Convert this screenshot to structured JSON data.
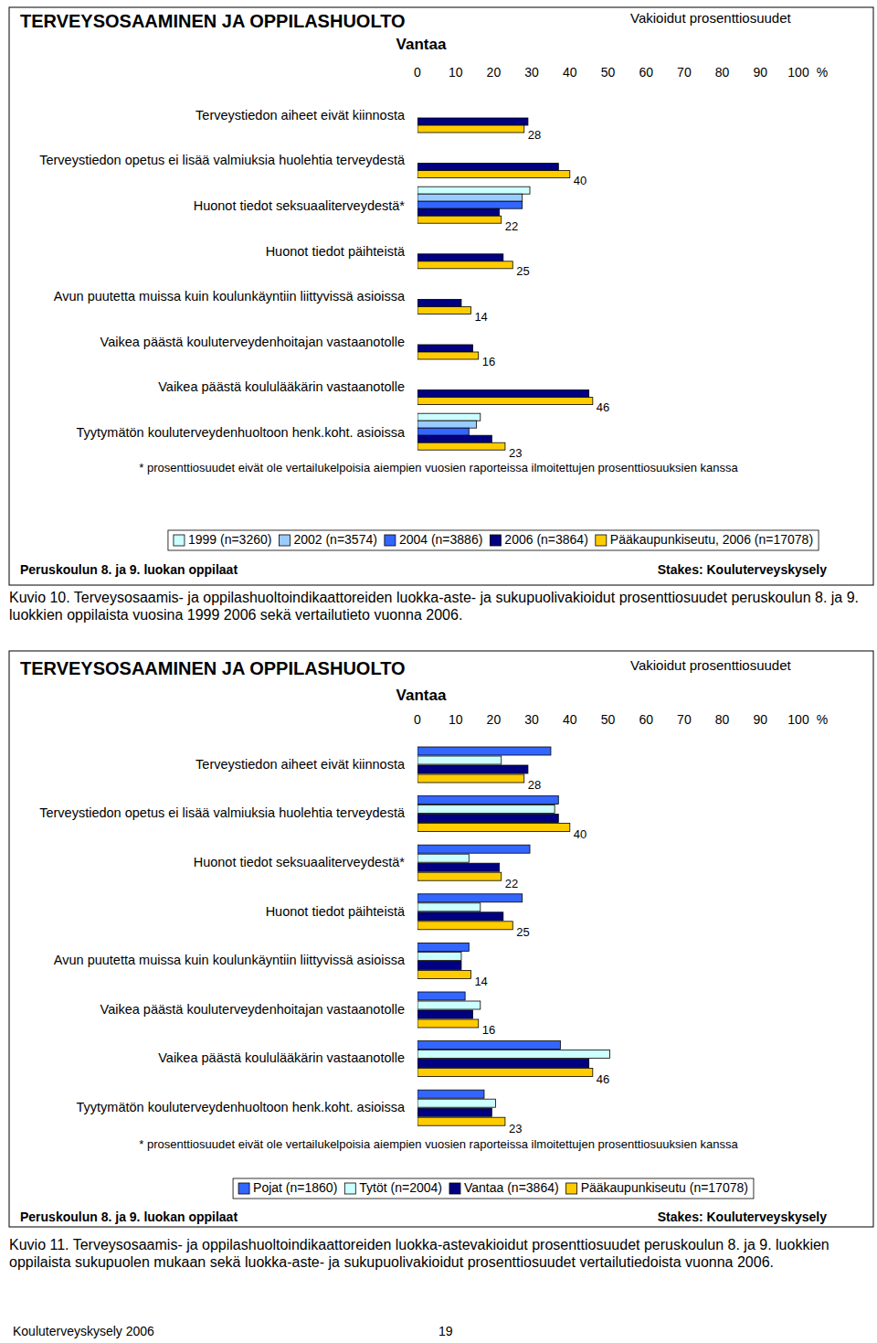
{
  "chart_data": [
    {
      "type": "bar",
      "orientation": "horizontal",
      "title": "TERVEYSOSAAMINEN JA OPPILASHUOLTO",
      "subtitle": "Vantaa",
      "xlabel": "%",
      "annotations": [
        "Vakioidut prosenttiosuudet",
        "* prosenttiosuudet eivät ole vertailukelpoisia aiempien vuosien raporteissa ilmoitettujen prosenttiosuuksien kanssa",
        "Peruskoulun 8. ja 9. luokan oppilaat",
        "Stakes: Kouluterveyskysely"
      ],
      "categories": [
        "Terveystiedon aiheet eivät kiinnosta",
        "Terveystiedon opetus ei lisää valmiuksia huolehtia terveydestä",
        "Huonot tiedot seksuaaliterveydestä*",
        "Huonot tiedot päihteistä",
        "Avun puutetta muissa kuin koulunkäyntiin liittyvissä asioissa",
        "Vaikea päästä kouluterveydenhoitajan vastaanotolle",
        "Vaikea päästä koululääkärin vastaanotolle",
        "Tyytymätön kouluterveydenhuoltoon henk.koht. asioissa"
      ],
      "series": [
        {
          "name": "1999 (n=3260)",
          "color": "#ccffff",
          "values": [
            null,
            null,
            29.5,
            null,
            null,
            null,
            null,
            16.5
          ]
        },
        {
          "name": "2002 (n=3574)",
          "color": "#99ccff",
          "values": [
            null,
            null,
            27.5,
            null,
            null,
            null,
            null,
            15.5
          ]
        },
        {
          "name": "2004 (n=3886)",
          "color": "#3366ff",
          "values": [
            null,
            null,
            27.5,
            null,
            null,
            null,
            null,
            13.5
          ]
        },
        {
          "name": "2006 (n=3864)",
          "color": "#000080",
          "values": [
            29,
            37,
            21.5,
            22.5,
            11.5,
            14.5,
            45,
            19.5
          ]
        },
        {
          "name": "Pääkaupunkiseutu, 2006 (n=17078)",
          "color": "#ffcc00",
          "data_labels": true,
          "values": [
            28,
            40,
            22,
            25,
            14,
            16,
            46,
            23
          ]
        }
      ],
      "xlim": [
        0,
        100
      ],
      "xticks": [
        0,
        10,
        20,
        30,
        40,
        50,
        60,
        70,
        80,
        90,
        100
      ],
      "grid": false,
      "legend": "bottom"
    },
    {
      "type": "bar",
      "orientation": "horizontal",
      "title": "TERVEYSOSAAMINEN JA OPPILASHUOLTO",
      "subtitle": "Vantaa",
      "xlabel": "%",
      "annotations": [
        "Vakioidut prosenttiosuudet",
        "* prosenttiosuudet eivät ole vertailukelpoisia aiempien vuosien raporteissa ilmoitettujen prosenttiosuuksien kanssa",
        "Peruskoulun 8. ja 9. luokan oppilaat",
        "Stakes: Kouluterveyskysely"
      ],
      "categories": [
        "Terveystiedon aiheet eivät kiinnosta",
        "Terveystiedon opetus ei lisää valmiuksia huolehtia terveydestä",
        "Huonot tiedot seksuaaliterveydestä*",
        "Huonot tiedot päihteistä",
        "Avun puutetta muissa kuin koulunkäyntiin liittyvissä asioissa",
        "Vaikea päästä kouluterveydenhoitajan vastaanotolle",
        "Vaikea päästä koululääkärin vastaanotolle",
        "Tyytymätön kouluterveydenhuoltoon henk.koht. asioissa"
      ],
      "series": [
        {
          "name": "Pojat (n=1860)",
          "color": "#3366ff",
          "values": [
            35,
            37,
            29.5,
            27.5,
            13.5,
            12.5,
            37.5,
            17.5
          ]
        },
        {
          "name": "Tytöt (n=2004)",
          "color": "#ccffff",
          "values": [
            22,
            36,
            13.5,
            16.5,
            11.5,
            16.5,
            50.5,
            20.5
          ]
        },
        {
          "name": "Vantaa (n=3864)",
          "color": "#000080",
          "values": [
            29,
            37,
            21.5,
            22.5,
            11.5,
            14.5,
            45,
            19.5
          ]
        },
        {
          "name": "Pääkaupunkiseutu (n=17078)",
          "color": "#ffcc00",
          "data_labels": true,
          "values": [
            28,
            40,
            22,
            25,
            14,
            16,
            46,
            23
          ]
        }
      ],
      "xlim": [
        0,
        100
      ],
      "xticks": [
        0,
        10,
        20,
        30,
        40,
        50,
        60,
        70,
        80,
        90,
        100
      ],
      "grid": false,
      "legend": "bottom"
    }
  ],
  "captions": [
    "Kuvio 10. Terveysosaamis- ja oppilashuoltoindikaattoreiden luokka-aste- ja sukupuolivakioidut prosenttiosuudet peruskoulun 8. ja 9. luokkien oppilaista vuosina 1999 2006 sekä vertailutieto vuonna 2006.",
    "Kuvio 11. Terveysosaamis- ja oppilashuoltoindikaattoreiden luokka-astevakioidut prosenttiosuudet peruskoulun 8. ja 9. luokkien oppilaista sukupuolen mukaan sekä luokka-aste- ja sukupuolivakioidut prosenttiosuudet vertailutiedoista vuonna 2006."
  ],
  "footer": {
    "left": "Kouluterveyskysely 2006",
    "page": 19
  }
}
